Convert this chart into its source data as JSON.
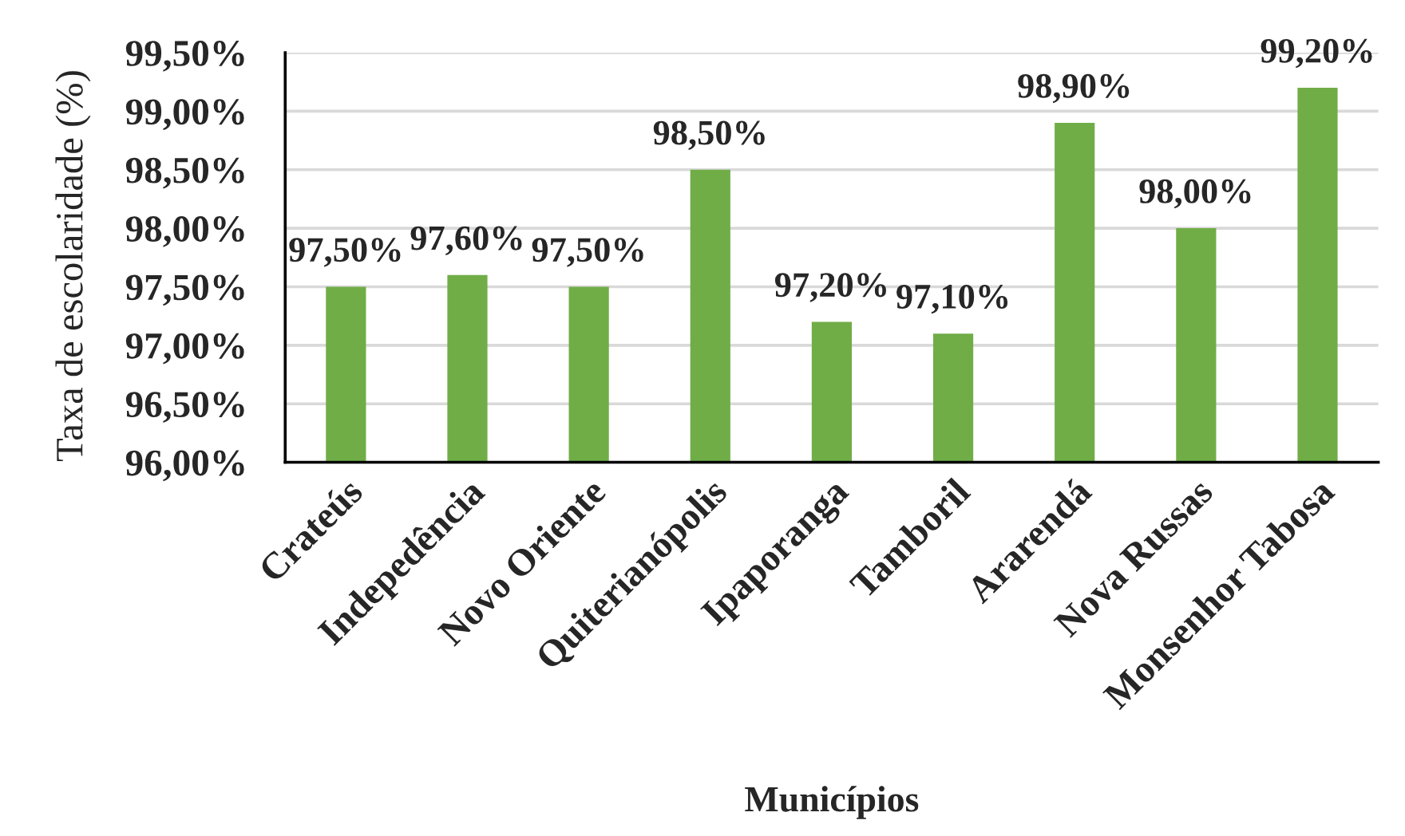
{
  "chart_data": {
    "type": "bar",
    "xlabel": "Municípios",
    "ylabel": "Taxa de escolaridade (%)",
    "categories": [
      "Crateús",
      "Indepedência",
      "Novo Oriente",
      "Quiterianópolis",
      "Ipaporanga",
      "Tamboril",
      "Ararendá",
      "Nova Russas",
      "Monsenhor Tabosa"
    ],
    "values": [
      97.5,
      97.6,
      97.5,
      98.5,
      97.2,
      97.1,
      98.9,
      98.0,
      99.2
    ],
    "value_labels": [
      "97,50%",
      "97,60%",
      "97,50%",
      "98,50%",
      "97,20%",
      "97,10%",
      "98,90%",
      "98,00%",
      "99,20%"
    ],
    "color": "#70ad47",
    "ylim": [
      96,
      99.5
    ],
    "yticks": [
      {
        "value": 96,
        "label": "96,00%"
      },
      {
        "value": 96.5,
        "label": "96,50%"
      },
      {
        "value": 97,
        "label": "97,00%"
      },
      {
        "value": 97.5,
        "label": "97,50%"
      },
      {
        "value": 98,
        "label": "98,00%"
      },
      {
        "value": 98.5,
        "label": "98,50%"
      },
      {
        "value": 99,
        "label": "99,00%"
      },
      {
        "value": 99.5,
        "label": "99,50%"
      }
    ],
    "grid": "y"
  }
}
